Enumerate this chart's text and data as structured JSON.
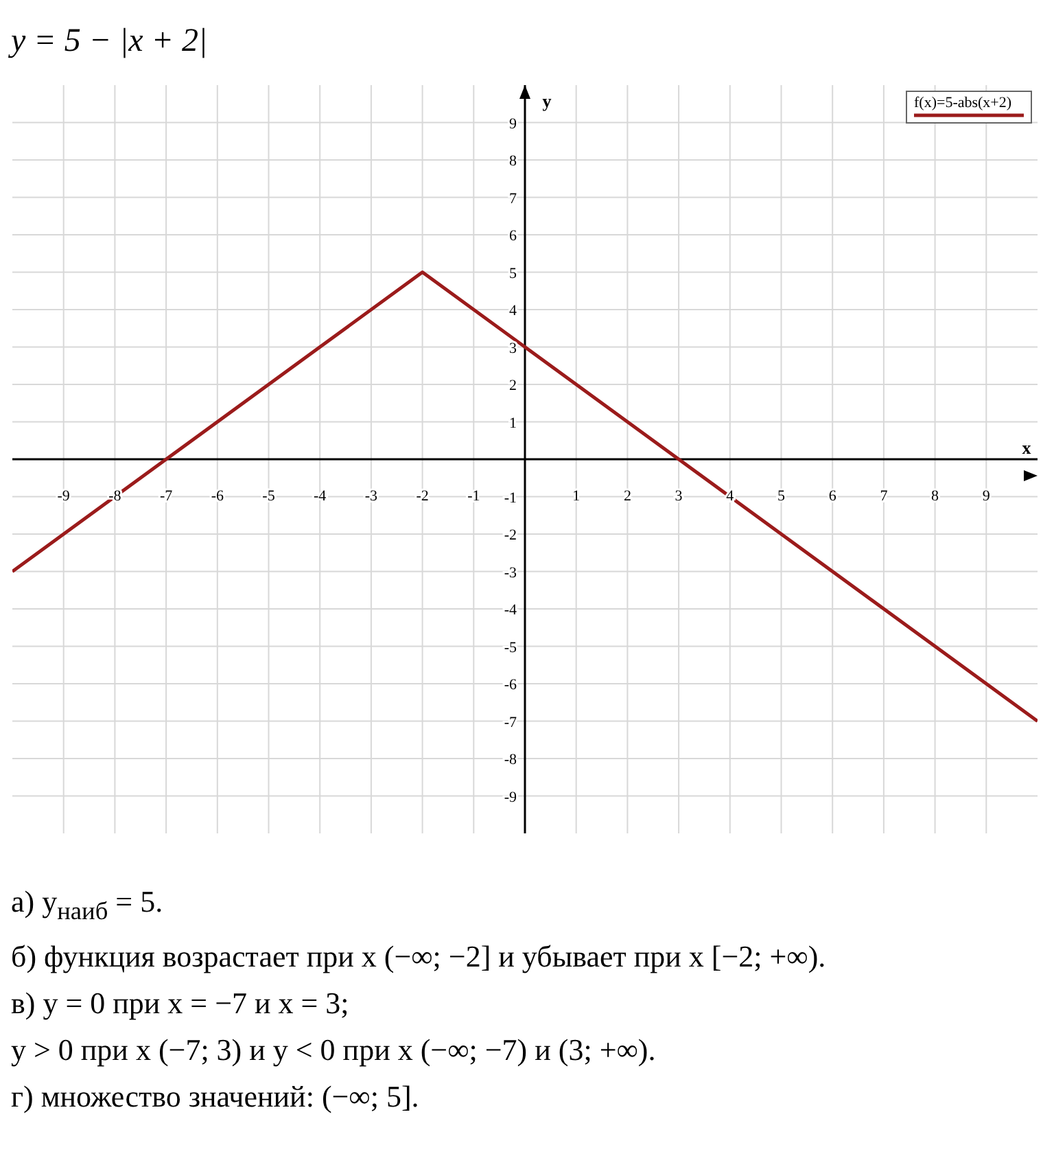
{
  "chart_data": {
    "type": "line",
    "title": "y = 5 − |x + 2|",
    "xlabel": "x",
    "ylabel": "y",
    "x": [
      -10,
      -7,
      -2,
      3,
      10
    ],
    "series": [
      {
        "name": "f(x)=5-abs(x+2)",
        "color": "#9b1b1b",
        "values": [
          -3,
          0,
          5,
          0,
          -7
        ]
      }
    ],
    "xlim": [
      -10,
      10
    ],
    "xticks": [
      -9,
      -8,
      -7,
      -6,
      -5,
      -4,
      -3,
      -2,
      -1,
      1,
      2,
      3,
      4,
      5,
      6,
      7,
      8,
      9
    ],
    "ylim": [
      -10,
      10
    ],
    "yticks": [
      -9,
      -8,
      -7,
      -6,
      -5,
      -4,
      -3,
      -2,
      -1,
      1,
      2,
      3,
      4,
      5,
      6,
      7,
      8,
      9
    ],
    "grid": true,
    "legend": "top right",
    "marker": "none",
    "line_style": "solid",
    "annotations": [
      "а) y$_{наиб}$ = 5.",
      "б) функция возрастает при x (−∞; −2] и убывает при x [−2; +∞).",
      "в) y = 0 при x = −7 и x = 3;",
      "y > 0 при x (−7; 3) и y < 0 при x (−∞; −7) и (3; +∞).",
      "г) множество значений: (−∞; 5]."
    ]
  }
}
